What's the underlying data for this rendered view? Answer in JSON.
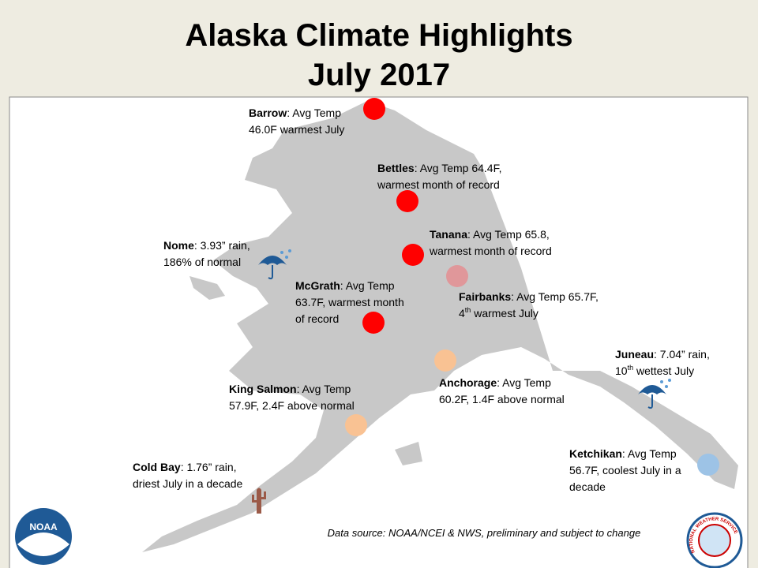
{
  "title": [
    "Alaska Climate Highlights",
    "July 2017"
  ],
  "stations": [
    {
      "name": "Barrow",
      "lines": [
        [
          ": Avg Temp"
        ],
        [
          "46.0F warmest July"
        ]
      ],
      "marker": {
        "type": "dot",
        "color": "#ff0000"
      }
    },
    {
      "name": "Bettles",
      "lines": [
        [
          ": Avg Temp 64.4F,"
        ],
        [
          "warmest month of record"
        ]
      ],
      "marker": {
        "type": "dot",
        "color": "#ff0000"
      }
    },
    {
      "name": "Tanana",
      "lines": [
        [
          ": Avg Temp 65.8,"
        ],
        [
          "warmest month of record"
        ]
      ],
      "marker": {
        "type": "dot",
        "color": "#ff0000"
      }
    },
    {
      "name": "Fairbanks",
      "lines": [
        [
          ": Avg Temp 65.7F,"
        ],
        [
          "4",
          {
            "sup": "th"
          },
          " warmest July"
        ]
      ],
      "marker": {
        "type": "dot",
        "color": "#e0979a"
      }
    },
    {
      "name": "McGrath",
      "lines": [
        [
          ": Avg Temp"
        ],
        [
          "63.7F, warmest month"
        ],
        [
          "of record"
        ]
      ],
      "marker": {
        "type": "dot",
        "color": "#ff0000"
      }
    },
    {
      "name": "Nome",
      "lines": [
        [
          ": 3.93” rain,"
        ],
        [
          "186% of normal"
        ]
      ],
      "marker": {
        "type": "umbrella",
        "color": "#1f5a96"
      }
    },
    {
      "name": "Juneau",
      "lines": [
        [
          ": 7.04” rain,"
        ],
        [
          "10",
          {
            "sup": "th"
          },
          " wettest July"
        ]
      ],
      "marker": {
        "type": "umbrella",
        "color": "#1f5a96"
      }
    },
    {
      "name": "King Salmon",
      "lines": [
        [
          ": Avg Temp"
        ],
        [
          "57.9F, 2.4F above normal"
        ]
      ],
      "marker": {
        "type": "dot",
        "color": "#f9c293"
      }
    },
    {
      "name": "Anchorage",
      "lines": [
        [
          ": Avg Temp"
        ],
        [
          "60.2F, 1.4F above normal"
        ]
      ],
      "marker": {
        "type": "dot",
        "color": "#f9c293"
      }
    },
    {
      "name": "Ketchikan",
      "lines": [
        [
          ": Avg Temp"
        ],
        [
          "56.7F, coolest July in a"
        ],
        [
          "decade"
        ]
      ],
      "marker": {
        "type": "dot",
        "color": "#9dc3e6"
      }
    },
    {
      "name": "Cold Bay",
      "lines": [
        [
          ": 1.76” rain,"
        ],
        [
          "driest July in a decade"
        ]
      ],
      "marker": {
        "type": "cactus",
        "color": "#9b5a48"
      }
    }
  ],
  "source": "Data source: NOAA/NCEI & NWS, preliminary and subject to change",
  "logos": {
    "noaa": "NOAA",
    "nws": "NATIONAL WEATHER SERVICE"
  }
}
